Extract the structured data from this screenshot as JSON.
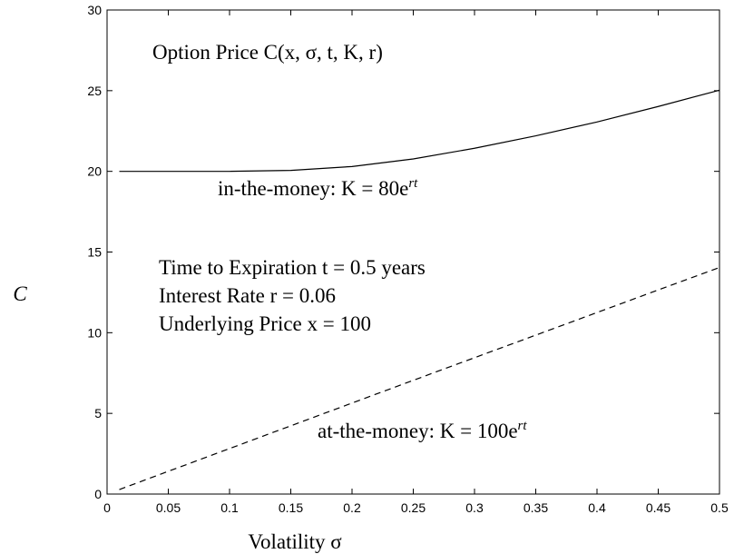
{
  "chart_data": {
    "type": "line",
    "title": "Option Price C(x, σ, t, K, r)",
    "xlabel": "Volatility σ",
    "ylabel": "C",
    "x": [
      0.01,
      0.05,
      0.1,
      0.15,
      0.2,
      0.25,
      0.3,
      0.35,
      0.4,
      0.45,
      0.5
    ],
    "series": [
      {
        "color": "#000000",
        "dash": "solid",
        "values": [
          20.0,
          20.0,
          20.0,
          20.06,
          20.3,
          20.77,
          21.43,
          22.2,
          23.06,
          24.02,
          25.03
        ]
      },
      {
        "color": "#000000",
        "dash": "dashed",
        "values": [
          0.28,
          1.41,
          2.82,
          4.23,
          5.64,
          7.05,
          8.45,
          9.85,
          11.25,
          12.65,
          14.04
        ]
      }
    ],
    "annotations": [
      {
        "text": "in-the-money: K = 80e",
        "sup": "rt"
      },
      {
        "text": "Time to Expiration t = 0.5 years"
      },
      {
        "text": "Interest Rate r = 0.06"
      },
      {
        "text": "Underlying Price x = 100"
      },
      {
        "text": "at-the-money: K = 100e",
        "sup": "rt"
      }
    ],
    "xlim": [
      0,
      0.5
    ],
    "xticks": [
      0,
      0.05,
      0.1,
      0.15,
      0.2,
      0.25,
      0.3,
      0.35,
      0.4,
      0.45,
      0.5
    ],
    "ylim": [
      0,
      30
    ],
    "yticks": [
      0,
      5,
      10,
      15,
      20,
      25,
      30
    ],
    "grid": false
  }
}
